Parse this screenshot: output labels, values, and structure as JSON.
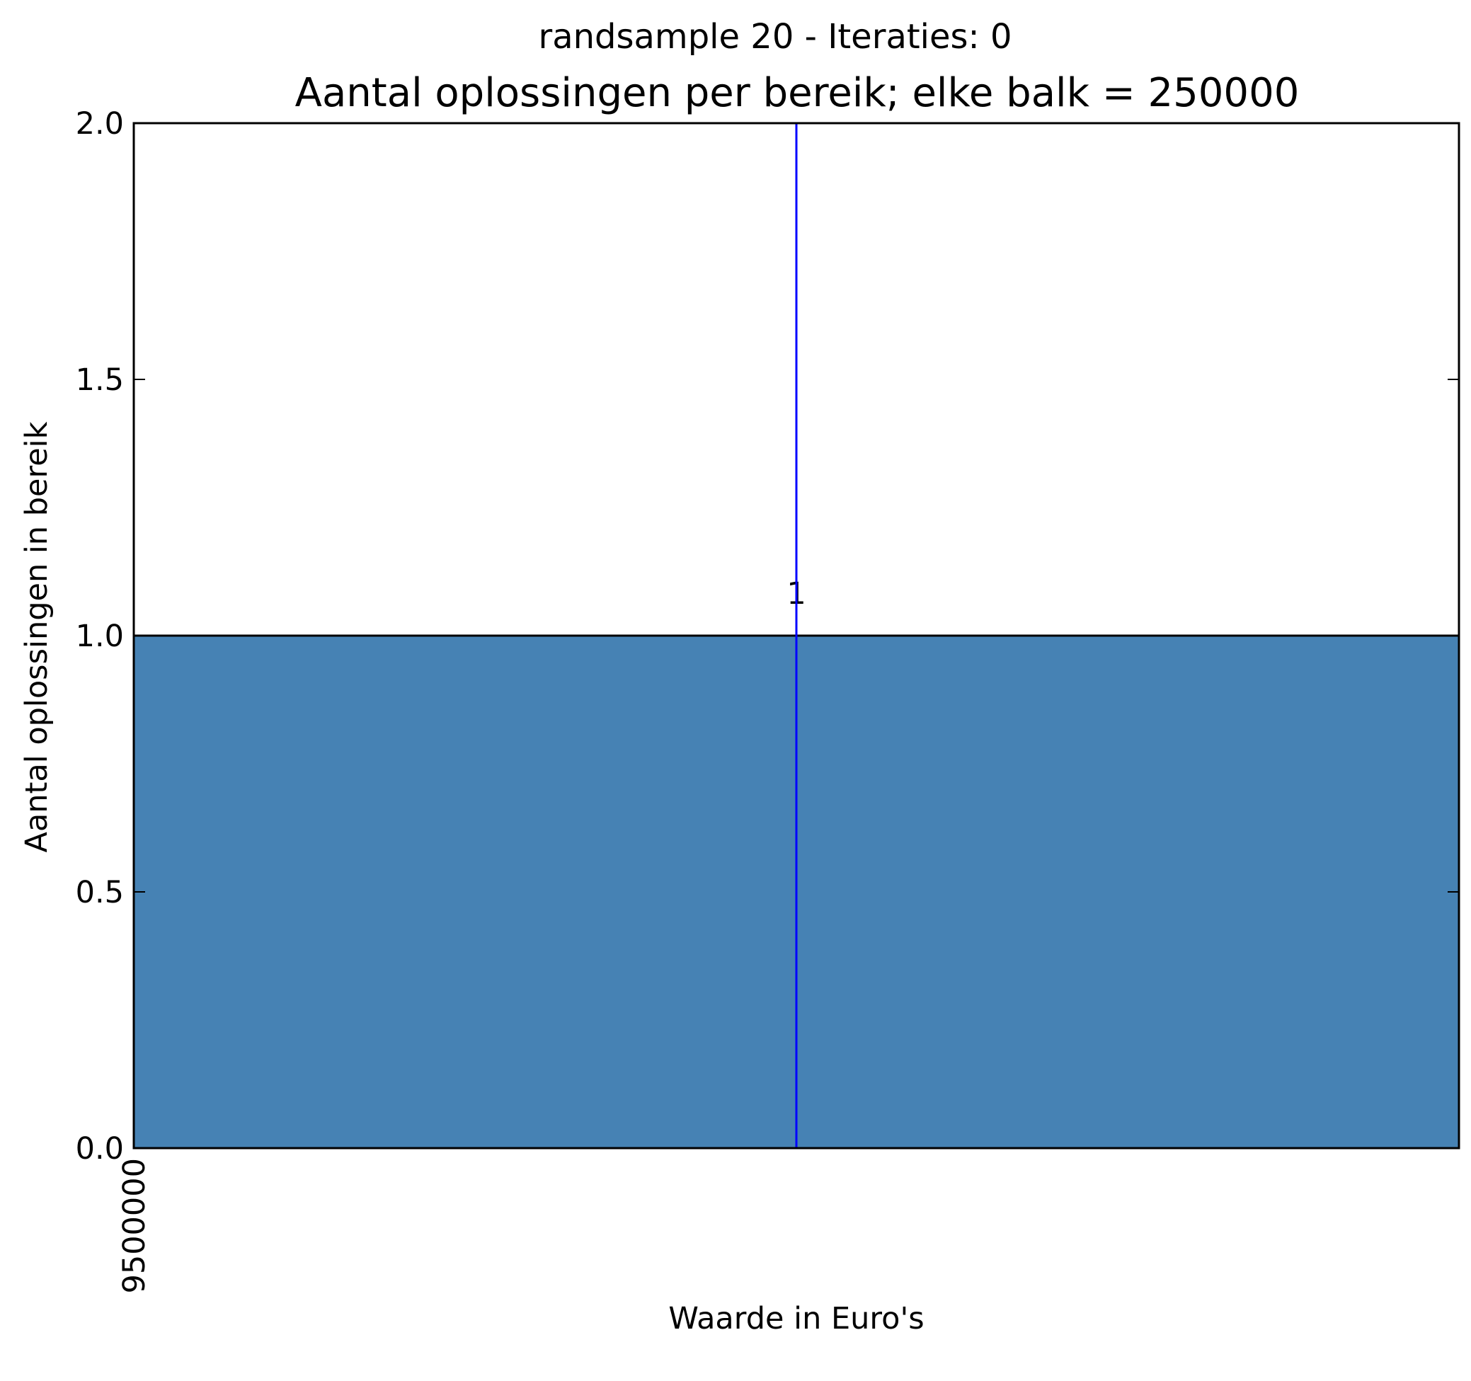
{
  "chart_data": {
    "type": "bar",
    "suptitle": "randsample 20 - Iteraties: 0",
    "title": "Aantal oplossingen per bereik; elke balk = 250000",
    "xlabel": "Waarde in Euro's",
    "ylabel": "Aantal oplossingen in bereik",
    "bin_width": 250000,
    "xlim": [
      9500000,
      9750000
    ],
    "x_tick_values": [
      9500000
    ],
    "x_tick_labels": [
      "9500000"
    ],
    "ylim": [
      0,
      2.0
    ],
    "y_ticks": [
      0.0,
      0.5,
      1.0,
      1.5,
      2.0
    ],
    "y_tick_labels": [
      "0.0",
      "0.5",
      "1.0",
      "1.5",
      "2.0"
    ],
    "bars": [
      {
        "x_start": 9500000,
        "x_end": 9750000,
        "value": 1,
        "label": "1"
      }
    ],
    "vertical_marker_x": 9625000,
    "grid": false,
    "bar_color": "#4682b4",
    "marker_color": "#0000ff"
  }
}
